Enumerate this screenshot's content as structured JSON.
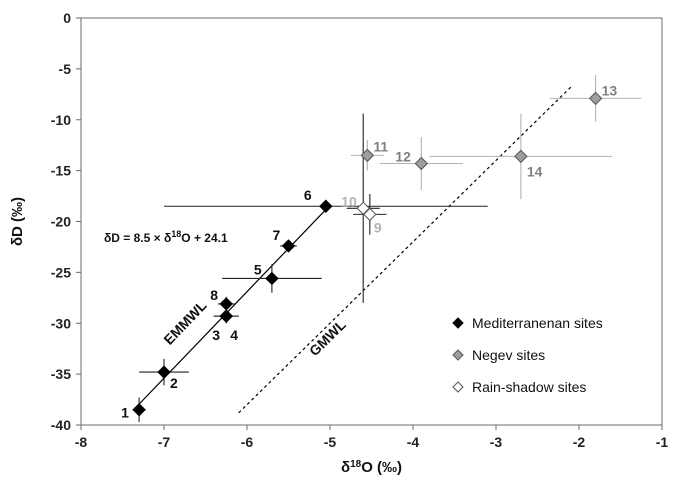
{
  "chart_data": {
    "type": "scatter",
    "title": "",
    "xlabel": "δ18O (‰)",
    "ylabel": "δD (‰)",
    "xlim": [
      -8,
      -1
    ],
    "ylim": [
      -40,
      0
    ],
    "xticks": [
      -8,
      -7,
      -6,
      -5,
      -4,
      -3,
      -2,
      -1
    ],
    "yticks": [
      0,
      -5,
      -10,
      -15,
      -20,
      -25,
      -30,
      -35,
      -40
    ],
    "grid": false,
    "legend_position": "bottom-right",
    "series": [
      {
        "name": "Mediterranenan sites",
        "marker": "diamond",
        "color": "#000000",
        "points": [
          {
            "label": "1",
            "x": -7.3,
            "y": -38.5,
            "xerr": 0.08,
            "yerr": 1.2
          },
          {
            "label": "2",
            "x": -7.0,
            "y": -34.8,
            "xerr": 0.3,
            "yerr": 1.3
          },
          {
            "label": "3",
            "x": -6.25,
            "y": -29.3,
            "xerr": 0.15,
            "yerr": 0.7
          },
          {
            "label": "4",
            "x": -6.25,
            "y": -29.3,
            "xerr": 0.15,
            "yerr": 0.7
          },
          {
            "label": "8",
            "x": -6.25,
            "y": -28.1,
            "xerr": 0.1,
            "yerr": 0.7
          },
          {
            "label": "5",
            "x": -5.7,
            "y": -25.6,
            "xerr": 0.6,
            "yerr": 1.4
          },
          {
            "label": "7",
            "x": -5.5,
            "y": -22.4,
            "xerr": 0.1,
            "yerr": 0.5
          },
          {
            "label": "6",
            "x": -5.05,
            "y": -18.5,
            "xerr": 1.95,
            "yerr": 0.5
          }
        ]
      },
      {
        "name": "Negev sites",
        "marker": "diamond",
        "color": "#9e9e9e",
        "points": [
          {
            "label": "11",
            "x": -4.55,
            "y": -13.5,
            "xerr": 0.2,
            "yerr": 1.5
          },
          {
            "label": "12",
            "x": -3.9,
            "y": -14.3,
            "xerr": 0.5,
            "yerr": 2.6
          },
          {
            "label": "13",
            "x": -1.8,
            "y": -7.9,
            "xerr": 0.55,
            "yerr": 2.3
          },
          {
            "label": "14",
            "x": -2.7,
            "y": -13.6,
            "xerr": 1.1,
            "yerr": 4.2
          }
        ]
      },
      {
        "name": "Rain-shadow sites",
        "marker": "diamond",
        "color": "#ffffff",
        "points": [
          {
            "label": "10",
            "x": -4.6,
            "y": -18.7,
            "xerr": 0.2,
            "yerr": 9.3
          },
          {
            "label": "9",
            "x": -4.52,
            "y": -19.3,
            "xerr": 0.2,
            "yerr": 2.0
          }
        ]
      }
    ],
    "lines": [
      {
        "name": "EMMWL",
        "style": "solid",
        "x": [
          -7.3,
          -5.05
        ]
      },
      {
        "name": "GMWL",
        "style": "dashed",
        "x": [
          -6.1,
          -2.1
        ]
      }
    ],
    "equation": "δD = 8.5 × δ18O  + 24.1"
  }
}
